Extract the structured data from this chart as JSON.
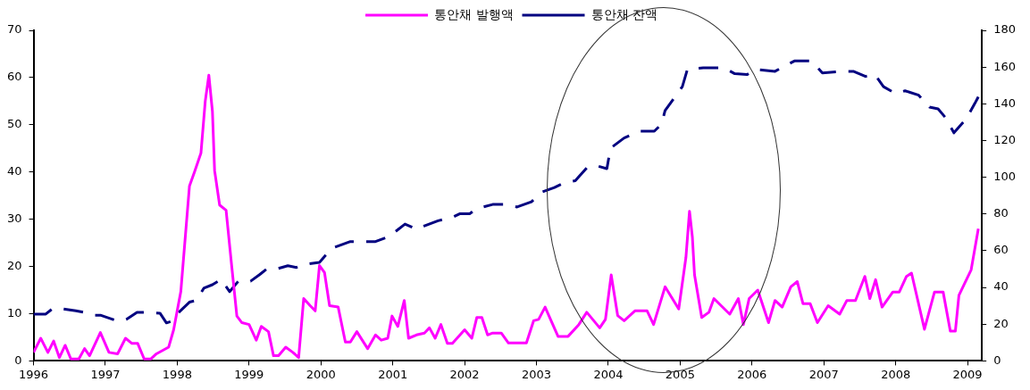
{
  "chart_data": {
    "type": "line",
    "grid": false,
    "legend": "top",
    "marker": "none",
    "xlim": [
      1996,
      2009.2
    ],
    "xticks": [
      1996,
      1997,
      1998,
      1999,
      2000,
      2001,
      2002,
      2003,
      2004,
      2005,
      2006,
      2007,
      2008,
      2009
    ],
    "ylim": [
      0,
      70
    ],
    "yticks": [
      0,
      10,
      20,
      30,
      40,
      50,
      60,
      70
    ],
    "y2lim": [
      0,
      180
    ],
    "y2ticks": [
      0,
      20,
      40,
      60,
      80,
      100,
      120,
      140,
      160,
      180
    ],
    "series": [
      {
        "name": "통안채 발행액",
        "color": "#ff00ff",
        "line_style": "solid",
        "x": [
          1996.0,
          1996.1,
          1996.2,
          1996.28,
          1996.36,
          1996.44,
          1996.52,
          1996.63,
          1996.71,
          1996.78,
          1996.93,
          1997.05,
          1997.17,
          1997.28,
          1997.37,
          1997.45,
          1997.54,
          1997.63,
          1997.71,
          1997.88,
          1997.95,
          1998.05,
          1998.17,
          1998.24,
          1998.33,
          1998.39,
          1998.44,
          1998.49,
          1998.52,
          1998.59,
          1998.68,
          1998.76,
          1998.83,
          1998.9,
          1999.0,
          1999.1,
          1999.17,
          1999.27,
          1999.34,
          1999.41,
          1999.51,
          1999.61,
          1999.69,
          1999.76,
          1999.85,
          1999.92,
          1999.98,
          2000.05,
          2000.12,
          2000.24,
          2000.34,
          2000.41,
          2000.5,
          2000.65,
          2000.76,
          2000.84,
          2000.93,
          2000.99,
          2001.07,
          2001.16,
          2001.22,
          2001.33,
          2001.44,
          2001.51,
          2001.59,
          2001.67,
          2001.76,
          2001.83,
          2002.0,
          2002.1,
          2002.17,
          2002.24,
          2002.32,
          2002.39,
          2002.51,
          2002.61,
          2002.86,
          2002.96,
          2003.03,
          2003.12,
          2003.3,
          2003.44,
          2003.59,
          2003.7,
          2003.88,
          2003.96,
          2004.04,
          2004.13,
          2004.22,
          2004.37,
          2004.54,
          2004.63,
          2004.79,
          2004.98,
          2005.08,
          2005.13,
          2005.17,
          2005.2,
          2005.3,
          2005.4,
          2005.47,
          2005.57,
          2005.69,
          2005.81,
          2005.88,
          2005.96,
          2006.08,
          2006.23,
          2006.32,
          2006.42,
          2006.54,
          2006.63,
          2006.71,
          2006.81,
          2006.91,
          2007.06,
          2007.22,
          2007.32,
          2007.44,
          2007.57,
          2007.64,
          2007.72,
          2007.81,
          2007.96,
          2008.05,
          2008.15,
          2008.22,
          2008.4,
          2008.54,
          2008.66,
          2008.76,
          2008.83,
          2008.88,
          2009.05,
          2009.15
        ],
        "values": [
          1.8,
          4.8,
          1.8,
          4.2,
          0.7,
          3.3,
          0.4,
          0.4,
          2.6,
          1.1,
          6.0,
          1.8,
          1.5,
          4.8,
          3.7,
          3.7,
          0.4,
          0.4,
          1.5,
          2.9,
          6.6,
          14.7,
          37,
          40,
          44,
          55,
          60.5,
          52.8,
          40.3,
          33,
          31.9,
          19.8,
          9.5,
          8.1,
          7.7,
          4.4,
          7.3,
          6.2,
          1.1,
          1.1,
          2.9,
          1.8,
          0.7,
          13.2,
          11.7,
          10.6,
          20.2,
          18.7,
          11.7,
          11.4,
          4.0,
          4.0,
          6.2,
          2.6,
          5.5,
          4.4,
          4.8,
          9.5,
          7.3,
          12.8,
          4.8,
          5.5,
          5.9,
          7.0,
          4.8,
          7.7,
          3.7,
          3.7,
          6.6,
          4.8,
          9.2,
          9.2,
          5.5,
          5.9,
          5.9,
          3.8,
          3.8,
          8.5,
          8.8,
          11.4,
          5.2,
          5.2,
          7.7,
          10.3,
          7.0,
          8.8,
          18.2,
          9.6,
          8.5,
          10.6,
          10.6,
          7.7,
          15.7,
          11.0,
          21.9,
          31.7,
          26.2,
          18.2,
          9.2,
          10.3,
          13.2,
          11.7,
          9.9,
          13.2,
          7.7,
          13.2,
          15.0,
          8.1,
          12.8,
          11.4,
          15.7,
          16.8,
          12.1,
          12.1,
          8.1,
          11.7,
          9.9,
          12.8,
          12.8,
          17.9,
          13.2,
          17.2,
          11.4,
          14.6,
          14.6,
          17.9,
          18.6,
          6.7,
          14.6,
          14.6,
          6.3,
          6.3,
          13.9,
          19.3,
          28.0
        ]
      },
      {
        "name": "통안채 잔액",
        "color": "#000080",
        "line_style": "dashed",
        "axis": "y2",
        "x": [
          1996.0,
          1996.17,
          1996.27,
          1996.37,
          1996.59,
          1996.71,
          1996.85,
          1996.93,
          1997.17,
          1997.29,
          1997.44,
          1997.56,
          1997.76,
          1997.85,
          1997.93,
          1998.02,
          1998.17,
          1998.27,
          1998.37,
          1998.49,
          1998.61,
          1998.73,
          1998.85,
          1999.02,
          1999.15,
          1999.24,
          1999.37,
          1999.54,
          1999.66,
          1999.76,
          1999.98,
          2000.15,
          2000.41,
          2000.61,
          2000.76,
          2000.95,
          2001.17,
          2001.34,
          2001.44,
          2001.63,
          2001.83,
          2001.93,
          2002.07,
          2002.17,
          2002.39,
          2002.56,
          2002.73,
          2002.93,
          2003.08,
          2003.25,
          2003.4,
          2003.54,
          2003.71,
          2003.86,
          2003.98,
          2004.03,
          2004.22,
          2004.44,
          2004.64,
          2004.74,
          2004.79,
          2004.91,
          2005.03,
          2005.1,
          2005.32,
          2005.61,
          2005.76,
          2005.93,
          2006.05,
          2006.32,
          2006.59,
          2006.83,
          2006.98,
          2007.27,
          2007.41,
          2007.58,
          2007.71,
          2007.83,
          2008.0,
          2008.13,
          2008.32,
          2008.47,
          2008.59,
          2008.69,
          2008.81,
          2008.98,
          2009.1,
          2009.15
        ],
        "values": [
          25.5,
          25.5,
          28.6,
          28.6,
          27.3,
          26.4,
          24.9,
          24.9,
          21.7,
          22.6,
          26.4,
          26.4,
          26.0,
          20.7,
          21.7,
          26.4,
          32.0,
          33.0,
          39.6,
          41.5,
          44.3,
          37.7,
          43.4,
          43.4,
          47.1,
          49.9,
          49.9,
          51.8,
          50.9,
          52.4,
          53.7,
          61.3,
          65.0,
          65.0,
          65.0,
          67.8,
          74.5,
          71.6,
          73.5,
          76.3,
          78.2,
          80.1,
          80.1,
          82.9,
          85.2,
          85.2,
          83.8,
          86.6,
          92.0,
          94.4,
          97.2,
          98.1,
          105.6,
          106.0,
          104.7,
          115.8,
          121.4,
          125.1,
          125.1,
          128.9,
          136.3,
          142.8,
          149.3,
          158.7,
          159.6,
          159.6,
          156.4,
          155.9,
          158.7,
          157.7,
          163.3,
          163.3,
          156.8,
          157.7,
          157.7,
          154.9,
          155.9,
          149.3,
          145.6,
          147.1,
          144.7,
          138.2,
          137.2,
          132.6,
          124.2,
          131.7,
          140.1,
          143.8
        ]
      }
    ]
  }
}
